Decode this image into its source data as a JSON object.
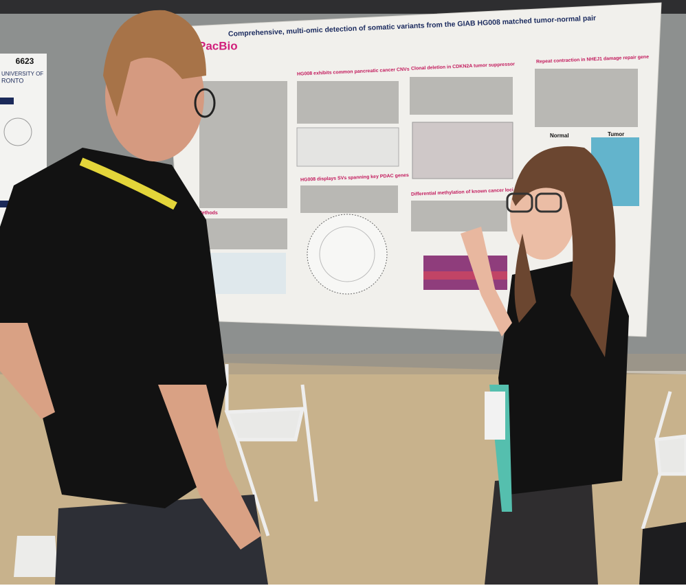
{
  "side_poster": {
    "number": "6623",
    "university_line1": "UNIVERSITY OF",
    "university_line2": "RONTO"
  },
  "poster": {
    "logo": "PacBio",
    "title": "Comprehensive, multi-omic detection of somatic variants from the GIAB HG008 matched tumor-normal pair",
    "sections": [
      "HG008 exhibits common pancreatic cancer CNVs",
      "Clonal deletion in CDKN2A tumor suppressor",
      "Repeat contraction in NHEJ1 damage repair gene",
      "HG008 displays SVs spanning key PDAC genes",
      "Differential methylation of known cancer loci",
      "Methods"
    ],
    "figure_labels": [
      "Normal",
      "Tumor"
    ]
  }
}
